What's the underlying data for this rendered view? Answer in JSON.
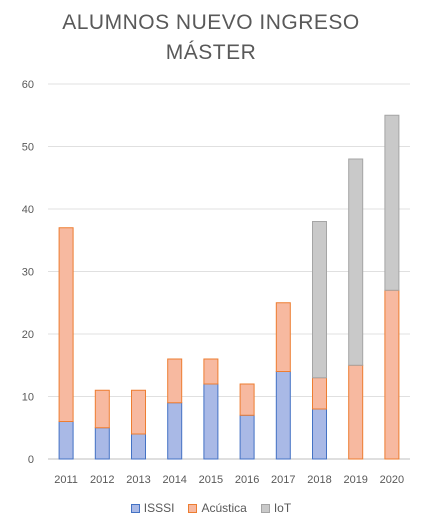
{
  "chart_data": {
    "type": "bar",
    "stacked": true,
    "title": [
      "ALUMNOS NUEVO INGRESO",
      "MÁSTER"
    ],
    "categories": [
      "2011",
      "2012",
      "2013",
      "2014",
      "2015",
      "2016",
      "2017",
      "2018",
      "2019",
      "2020"
    ],
    "series": [
      {
        "name": "ISSSI",
        "values": [
          6,
          5,
          4,
          9,
          12,
          7,
          14,
          8,
          0,
          0
        ],
        "fill": "#a9b9e6",
        "stroke": "#4472c4"
      },
      {
        "name": "Acústica",
        "values": [
          31,
          6,
          7,
          7,
          4,
          5,
          11,
          5,
          15,
          27
        ],
        "fill": "#f7b9a0",
        "stroke": "#ed7d31"
      },
      {
        "name": "IoT",
        "values": [
          0,
          0,
          0,
          0,
          0,
          0,
          0,
          25,
          33,
          28
        ],
        "fill": "#c9c9c9",
        "stroke": "#a5a5a5"
      }
    ],
    "ylim": [
      0,
      60
    ],
    "yticks": [
      0,
      10,
      20,
      30,
      40,
      50,
      60
    ],
    "grid": true,
    "legend_position": "bottom"
  }
}
